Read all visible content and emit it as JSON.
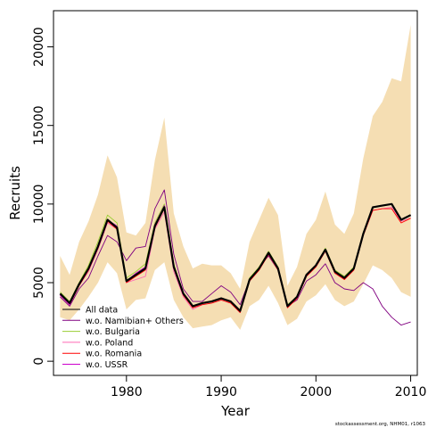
{
  "chart_data": {
    "type": "line",
    "title": "",
    "xlabel": "Year",
    "ylabel": "Recruits",
    "xlim": [
      1972.3,
      2010.7
    ],
    "ylim": [
      -900,
      22300
    ],
    "x_ticks": [
      1980,
      1990,
      2000,
      2010
    ],
    "y_ticks": [
      0,
      5000,
      10000,
      15000,
      20000
    ],
    "grid": false,
    "legend_position": "bottom-left",
    "x": [
      1973,
      1974,
      1975,
      1976,
      1977,
      1978,
      1979,
      1980,
      1981,
      1982,
      1983,
      1984,
      1985,
      1986,
      1987,
      1988,
      1989,
      1990,
      1991,
      1992,
      1993,
      1994,
      1995,
      1996,
      1997,
      1998,
      1999,
      2000,
      2001,
      2002,
      2003,
      2004,
      2005,
      2006,
      2007,
      2008,
      2009,
      2010
    ],
    "band": {
      "color": "#f5deb3",
      "upper": [
        6700,
        5500,
        7600,
        8900,
        10600,
        13100,
        11700,
        8200,
        8000,
        8800,
        12800,
        15500,
        9400,
        7300,
        5900,
        6200,
        6100,
        6100,
        5600,
        4600,
        7600,
        9000,
        10400,
        9300,
        4800,
        6000,
        8100,
        9000,
        10800,
        8700,
        8100,
        9400,
        12900,
        15600,
        16500,
        18000,
        17800,
        21400
      ],
      "lower": [
        2800,
        2600,
        3300,
        4100,
        5000,
        6300,
        5600,
        3300,
        3900,
        4000,
        5800,
        6300,
        3900,
        2800,
        2100,
        2200,
        2300,
        2600,
        2800,
        2000,
        3500,
        3900,
        4800,
        3700,
        2300,
        2700,
        3800,
        4200,
        4900,
        3900,
        3500,
        3800,
        4900,
        6100,
        5800,
        5300,
        4400,
        4100
      ]
    },
    "series": [
      {
        "name": "All data",
        "color": "#000000",
        "width": 2.2,
        "values": [
          4300,
          3700,
          4900,
          5900,
          7300,
          9000,
          8500,
          5100,
          5500,
          5900,
          8600,
          9800,
          6000,
          4300,
          3500,
          3700,
          3800,
          4000,
          3800,
          3200,
          5200,
          5900,
          6900,
          5900,
          3500,
          4100,
          5500,
          6100,
          7100,
          5700,
          5300,
          5900,
          8100,
          9800,
          9900,
          10000,
          9000,
          9300
        ]
      },
      {
        "name": "w.o. Namibian+ Others",
        "color": "#800080",
        "width": 0.9,
        "values": [
          4100,
          3500,
          4600,
          5300,
          6700,
          8000,
          7600,
          6400,
          7200,
          7300,
          9700,
          10900,
          6800,
          4600,
          3800,
          3800,
          4300,
          4800,
          4400,
          3600,
          5200,
          6000,
          6700,
          5800,
          3500,
          3900,
          5100,
          5500,
          6200,
          5000,
          4600,
          4500,
          5000,
          4600,
          3500,
          2800,
          2300,
          2500
        ]
      },
      {
        "name": "w.o. Bulgaria",
        "color": "#9acd32",
        "width": 0.9,
        "values": [
          4400,
          3800,
          5000,
          6100,
          7600,
          9300,
          8800,
          5300,
          5700,
          6200,
          8800,
          10000,
          6200,
          4300,
          3500,
          3700,
          3800,
          4000,
          3800,
          3200,
          5300,
          6000,
          7000,
          6000,
          3600,
          4100,
          5500,
          6100,
          7200,
          5800,
          5400,
          6000,
          8200,
          9800,
          9900,
          10000,
          9000,
          9300
        ]
      },
      {
        "name": "w.o. Poland",
        "color": "#ff69b4",
        "width": 0.9,
        "values": [
          4300,
          3700,
          4800,
          5700,
          7100,
          8800,
          8400,
          5000,
          5200,
          5400,
          8400,
          9500,
          5700,
          4100,
          3300,
          3600,
          3700,
          3900,
          3700,
          3100,
          5100,
          5800,
          6800,
          5800,
          3400,
          4000,
          5400,
          6000,
          7000,
          5600,
          5200,
          5800,
          8000,
          9600,
          9700,
          9800,
          8900,
          9100
        ]
      },
      {
        "name": "w.o. Romania",
        "color": "#ff0000",
        "width": 0.9,
        "values": [
          4200,
          3600,
          4800,
          5800,
          7200,
          8900,
          8400,
          5000,
          5400,
          5800,
          8500,
          9700,
          5900,
          4200,
          3400,
          3600,
          3700,
          3900,
          3700,
          3100,
          5100,
          5800,
          6800,
          5800,
          3400,
          4000,
          5400,
          6000,
          7000,
          5600,
          5200,
          5800,
          8000,
          9600,
          9700,
          9700,
          8800,
          9100
        ]
      },
      {
        "name": "w.o. USSR",
        "color": "#cc00cc",
        "width": 0.9,
        "values": [
          4200,
          3600,
          4900,
          5900,
          7300,
          9000,
          8600,
          5100,
          5600,
          6000,
          8700,
          9900,
          6100,
          4300,
          3500,
          3700,
          3800,
          4000,
          3800,
          3200,
          5200,
          5900,
          6900,
          5900,
          3500,
          4100,
          5500,
          6100,
          7100,
          5700,
          5300,
          5900,
          8100,
          9800,
          9900,
          10000,
          9000,
          9300
        ]
      }
    ]
  },
  "legend": [
    {
      "label": "All data",
      "color": "#000000"
    },
    {
      "label": "w.o. Namibian+ Others",
      "color": "#800080"
    },
    {
      "label": "w.o. Bulgaria",
      "color": "#9acd32"
    },
    {
      "label": "w.o. Poland",
      "color": "#ff69b4"
    },
    {
      "label": "w.o. Romania",
      "color": "#ff0000"
    },
    {
      "label": "w.o. USSR",
      "color": "#cc00cc"
    }
  ],
  "footer": "stockassessment.org, NHM01, r1063"
}
